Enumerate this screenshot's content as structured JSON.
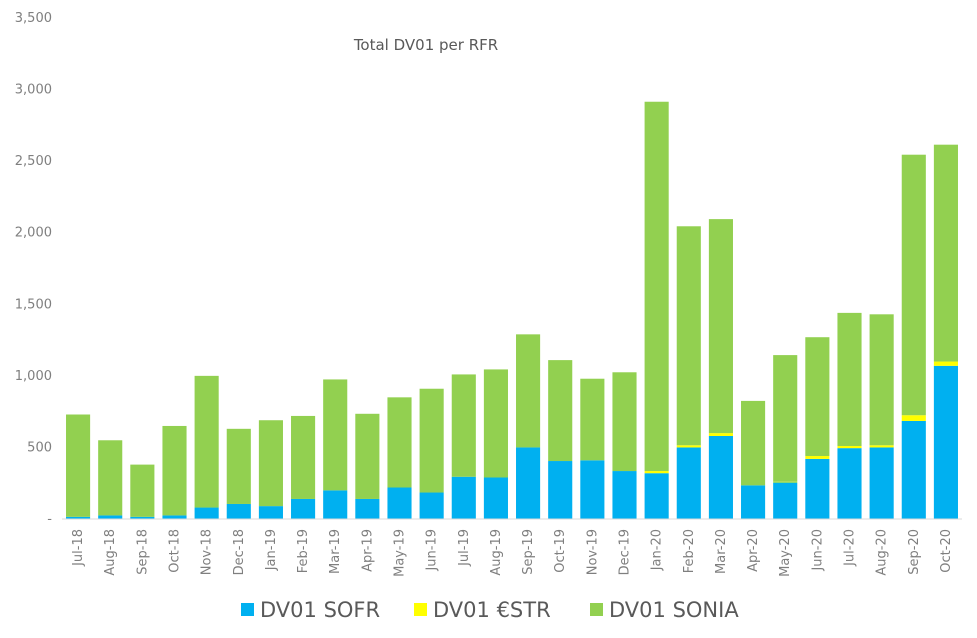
{
  "chart_data": {
    "type": "bar",
    "stacked": true,
    "title": "Total DV01 per RFR",
    "xlabel": "",
    "ylabel": "",
    "ylim": [
      0,
      3500
    ],
    "yticks": [
      0,
      500,
      1000,
      1500,
      2000,
      2500,
      3000,
      3500
    ],
    "ytick_labels": [
      "-",
      "500",
      "1,000",
      "1,500",
      "2,000",
      "2,500",
      "3,000",
      "3,500"
    ],
    "grid": false,
    "legend_position": "bottom",
    "categories": [
      "Jul-18",
      "Aug-18",
      "Sep-18",
      "Oct-18",
      "Nov-18",
      "Dec-18",
      "Jan-19",
      "Feb-19",
      "Mar-19",
      "Apr-19",
      "May-19",
      "Jun-19",
      "Jul-19",
      "Aug-19",
      "Sep-19",
      "Oct-19",
      "Nov-19",
      "Dec-19",
      "Jan-20",
      "Feb-20",
      "Mar-20",
      "Apr-20",
      "May-20",
      "Jun-20",
      "Jul-20",
      "Aug-20",
      "Sep-20",
      "Oct-20"
    ],
    "series": [
      {
        "name": "DV01 SOFR",
        "color": "#00b0f0",
        "values": [
          15,
          25,
          15,
          25,
          80,
          105,
          90,
          140,
          200,
          140,
          220,
          185,
          295,
          290,
          500,
          405,
          410,
          335,
          320,
          500,
          580,
          235,
          255,
          420,
          495,
          500,
          685,
          1070
        ]
      },
      {
        "name": "DV01 €STR",
        "color": "#ffff00",
        "values": [
          0,
          0,
          0,
          0,
          0,
          0,
          0,
          0,
          0,
          0,
          0,
          0,
          0,
          0,
          0,
          0,
          0,
          0,
          15,
          15,
          20,
          0,
          5,
          20,
          15,
          15,
          40,
          30
        ]
      },
      {
        "name": "DV01 SONIA",
        "color": "#92d050",
        "values": [
          715,
          525,
          365,
          625,
          920,
          525,
          600,
          580,
          775,
          595,
          630,
          725,
          715,
          755,
          790,
          705,
          570,
          690,
          2580,
          1530,
          1495,
          590,
          885,
          830,
          930,
          915,
          1820,
          1515
        ]
      }
    ]
  }
}
